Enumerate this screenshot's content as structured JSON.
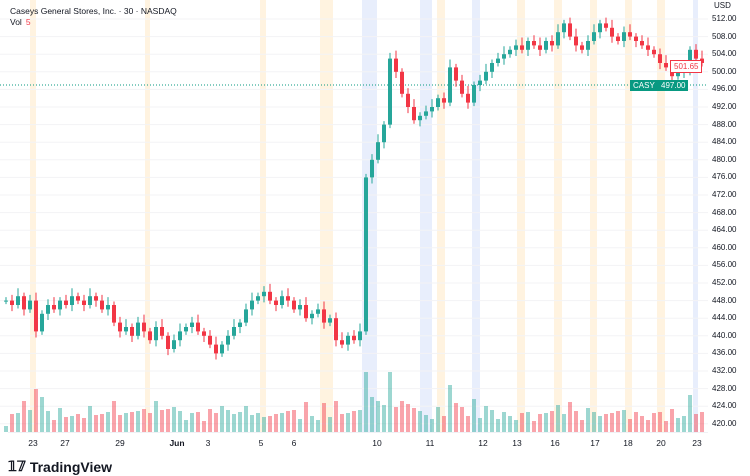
{
  "header": {
    "title": "Caseys General Stores, Inc. · 30 · NASDAQ",
    "vol_label": "Vol",
    "vol_value": "5",
    "currency": "USD"
  },
  "price_tags": {
    "last": "501.65",
    "symbol": "CASY",
    "symbol_price": "497.00",
    "colors": {
      "up": "#26a69a",
      "down": "#f23645"
    }
  },
  "brand": "TradingView",
  "chart_data": {
    "type": "candlestick",
    "ylim": [
      418,
      514
    ],
    "y_ticks": [
      "420.00",
      "424.00",
      "428.00",
      "432.00",
      "436.00",
      "440.00",
      "444.00",
      "448.00",
      "452.00",
      "456.00",
      "460.00",
      "464.00",
      "468.00",
      "472.00",
      "476.00",
      "480.00",
      "484.00",
      "488.00",
      "492.00",
      "496.00",
      "500.00",
      "504.00",
      "508.00",
      "512.00"
    ],
    "x_ticks": [
      "23",
      "27",
      "29",
      "Jun",
      "3",
      "5",
      "6",
      "10",
      "11",
      "12",
      "13",
      "16",
      "17",
      "18",
      "20",
      "23"
    ],
    "closes": [
      448,
      447,
      449,
      446,
      448,
      441,
      445,
      447,
      446,
      448,
      447,
      449,
      448,
      447,
      449,
      448,
      446,
      447,
      443,
      441,
      442,
      440,
      443,
      441,
      439,
      442,
      440,
      437,
      439,
      441,
      442,
      443,
      441,
      440,
      438,
      436,
      438,
      440,
      442,
      443,
      446,
      448,
      449,
      450,
      448,
      447,
      449,
      448,
      446,
      447,
      444,
      445,
      446,
      443,
      444,
      439,
      438,
      440,
      439,
      441,
      476,
      480,
      484,
      488,
      503,
      500,
      495,
      492,
      489,
      490,
      491,
      492,
      494,
      493,
      501,
      498,
      495,
      493,
      497,
      498,
      500,
      502,
      503,
      504,
      505,
      506,
      505,
      507,
      506,
      505,
      507,
      506,
      509,
      511,
      508,
      506,
      505,
      507,
      509,
      511,
      510,
      508,
      507,
      509,
      508,
      507,
      506,
      505,
      504,
      502,
      501,
      499,
      500,
      500,
      505,
      503,
      502
    ]
  }
}
